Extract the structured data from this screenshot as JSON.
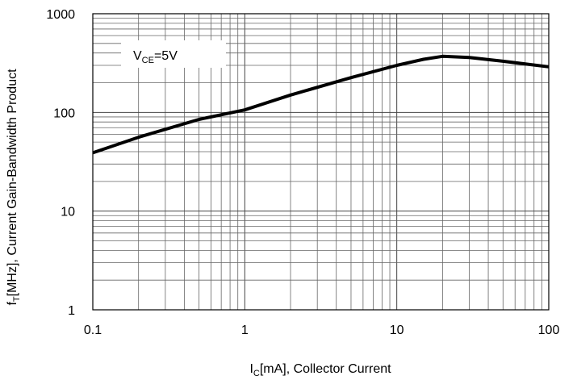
{
  "chart_data": {
    "type": "line",
    "title": "",
    "xscale": "log",
    "yscale": "log",
    "xlim": [
      0.1,
      100
    ],
    "ylim": [
      1,
      1000
    ],
    "grid": true,
    "xlabel_parts": {
      "main": "I",
      "sub": "C",
      "rest": "[mA], Collector Current"
    },
    "ylabel_parts": {
      "main": "f",
      "sub": "T",
      "rest": "[MHz], Current Gain-Bandwidth Product"
    },
    "xtick_labels": [
      "0.1",
      "1",
      "10",
      "100"
    ],
    "ytick_labels": [
      "1",
      "10",
      "100",
      "1000"
    ],
    "legend": {
      "main": "V",
      "sub": "CE",
      "rest": "=5V",
      "placement": "top-left"
    },
    "series": [
      {
        "name": "VCE=5V",
        "x": [
          0.1,
          0.2,
          0.5,
          1,
          2,
          5,
          10,
          15,
          20,
          30,
          50,
          100
        ],
        "y": [
          39,
          56,
          85,
          106,
          150,
          225,
          300,
          345,
          370,
          360,
          330,
          290
        ]
      }
    ]
  }
}
